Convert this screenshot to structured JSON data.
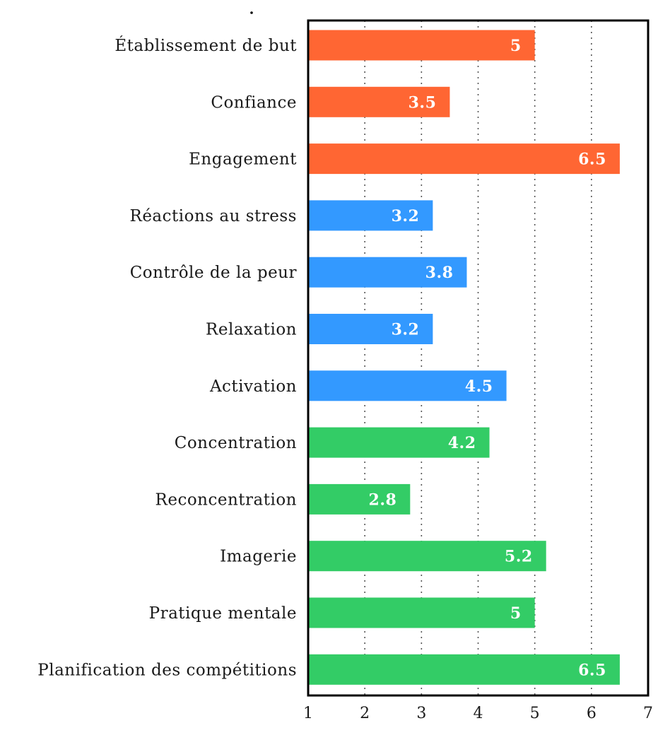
{
  "chart_data": {
    "type": "bar",
    "orientation": "horizontal",
    "xlim": [
      1,
      7
    ],
    "xticks": [
      "1",
      "2",
      "3",
      "4",
      "5",
      "6",
      "7"
    ],
    "grid": "vertical dotted",
    "colors": {
      "orange": "#ff6633",
      "blue": "#3399ff",
      "green": "#33cc66"
    },
    "categories": [
      "Établissement de but",
      "Confiance",
      "Engagement",
      "Réactions au stress",
      "Contrôle de la peur",
      "Relaxation",
      "Activation",
      "Concentration",
      "Reconcentration",
      "Imagerie",
      "Pratique mentale",
      "Planification des compétitions"
    ],
    "values": [
      5,
      3.5,
      6.5,
      3.2,
      3.8,
      3.2,
      4.5,
      4.2,
      2.8,
      5.2,
      5,
      6.5
    ],
    "value_labels": [
      "5",
      "3.5",
      "6.5",
      "3.2",
      "3.8",
      "3.2",
      "4.5",
      "4.2",
      "2.8",
      "5.2",
      "5",
      "6.5"
    ],
    "bar_colors": [
      "#ff6633",
      "#ff6633",
      "#ff6633",
      "#3399ff",
      "#3399ff",
      "#3399ff",
      "#3399ff",
      "#33cc66",
      "#33cc66",
      "#33cc66",
      "#33cc66",
      "#33cc66"
    ]
  }
}
